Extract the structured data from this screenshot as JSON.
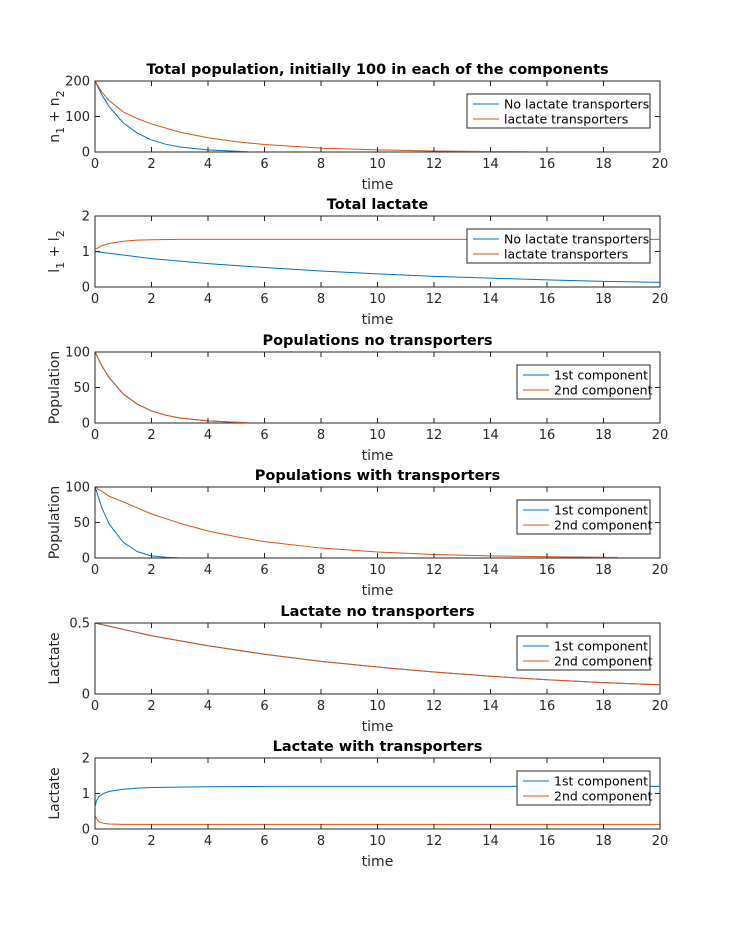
{
  "colors": {
    "blue": "#0072BD",
    "orange": "#D95319",
    "axis": "#262626"
  },
  "chart_data": [
    {
      "type": "line",
      "title": "Total population, initially 100 in each of the components",
      "xlabel": "time",
      "ylabel": {
        "base1": "n",
        "sub1": "1",
        "op": " + ",
        "base2": "n",
        "sub2": "2"
      },
      "xlim": [
        0,
        20
      ],
      "ylim": [
        0,
        200
      ],
      "xticks": [
        "0",
        "2",
        "4",
        "6",
        "8",
        "10",
        "12",
        "14",
        "16",
        "18",
        "20"
      ],
      "yticks": [
        "0",
        "100",
        "200"
      ],
      "legend_position": "top-right",
      "series": [
        {
          "name": "No lactate transporters",
          "color": "blue",
          "x": [
            0,
            0.25,
            0.5,
            1,
            1.5,
            2,
            2.5,
            3,
            4,
            5,
            5.4
          ],
          "y": [
            200,
            160,
            128,
            82,
            53,
            34,
            22,
            14,
            6,
            2,
            1
          ]
        },
        {
          "name": "lactate transporters",
          "color": "orange",
          "x": [
            0,
            0.25,
            0.5,
            1,
            1.5,
            2,
            3,
            4,
            5,
            6,
            8,
            10,
            12,
            14,
            15.4
          ],
          "y": [
            200,
            168,
            145,
            113,
            94,
            79,
            56,
            40,
            29,
            21,
            11,
            6,
            3,
            1.5,
            1
          ]
        }
      ]
    },
    {
      "type": "line",
      "title": "Total lactate",
      "xlabel": "time",
      "ylabel": {
        "base1": "l",
        "sub1": "1",
        "op": " + ",
        "base2": "l",
        "sub2": "2"
      },
      "xlim": [
        0,
        20
      ],
      "ylim": [
        0,
        2
      ],
      "xticks": [
        "0",
        "2",
        "4",
        "6",
        "8",
        "10",
        "12",
        "14",
        "16",
        "18",
        "20"
      ],
      "yticks": [
        "0",
        "1",
        "2"
      ],
      "legend_position": "top-right",
      "series": [
        {
          "name": "No lactate transporters",
          "color": "blue",
          "x": [
            0,
            2,
            4,
            6,
            8,
            10,
            12,
            14,
            16,
            18,
            20
          ],
          "y": [
            1.0,
            0.8,
            0.66,
            0.55,
            0.45,
            0.37,
            0.3,
            0.25,
            0.2,
            0.16,
            0.13
          ]
        },
        {
          "name": "lactate transporters",
          "color": "orange",
          "x": [
            0,
            0.2,
            0.5,
            1,
            1.5,
            2,
            3,
            4,
            6,
            10,
            20
          ],
          "y": [
            1.05,
            1.15,
            1.23,
            1.29,
            1.32,
            1.33,
            1.34,
            1.34,
            1.34,
            1.34,
            1.34
          ]
        }
      ]
    },
    {
      "type": "line",
      "title": "Populations no transporters",
      "xlabel": "time",
      "ylabel": "Population",
      "xlim": [
        0,
        20
      ],
      "ylim": [
        0,
        100
      ],
      "xticks": [
        "0",
        "2",
        "4",
        "6",
        "8",
        "10",
        "12",
        "14",
        "16",
        "18",
        "20"
      ],
      "yticks": [
        "0",
        "50",
        "100"
      ],
      "legend_position": "top-right",
      "series": [
        {
          "name": "1st component",
          "color": "blue",
          "x": [
            0,
            0.25,
            0.5,
            1,
            1.5,
            2,
            2.5,
            3,
            4,
            5,
            5.4
          ],
          "y": [
            100,
            80,
            64,
            41,
            26.5,
            17,
            11,
            7,
            3,
            1,
            0.5
          ]
        },
        {
          "name": "2nd component",
          "color": "orange",
          "x": [
            0,
            0.25,
            0.5,
            1,
            1.5,
            2,
            2.5,
            3,
            4,
            5,
            5.4
          ],
          "y": [
            100,
            80,
            64,
            41,
            26.5,
            17,
            11,
            7,
            3,
            1,
            0.5
          ]
        }
      ]
    },
    {
      "type": "line",
      "title": "Populations with transporters",
      "xlabel": "time",
      "ylabel": "Population",
      "xlim": [
        0,
        20
      ],
      "ylim": [
        0,
        100
      ],
      "xticks": [
        "0",
        "2",
        "4",
        "6",
        "8",
        "10",
        "12",
        "14",
        "16",
        "18",
        "20"
      ],
      "yticks": [
        "0",
        "50",
        "100"
      ],
      "legend_position": "top-right",
      "series": [
        {
          "name": "1st component",
          "color": "blue",
          "x": [
            0,
            0.25,
            0.5,
            1,
            1.5,
            2,
            2.5,
            3
          ],
          "y": [
            100,
            70,
            48,
            22,
            9,
            3,
            1,
            0.3
          ]
        },
        {
          "name": "2nd component",
          "color": "orange",
          "x": [
            0,
            0.5,
            1,
            2,
            3,
            4,
            5,
            6,
            8,
            10,
            12,
            14,
            16,
            18,
            18.5
          ],
          "y": [
            100,
            87,
            79,
            62,
            49,
            38,
            30,
            23,
            14,
            8.5,
            5,
            3,
            1.8,
            1,
            0.8
          ]
        }
      ]
    },
    {
      "type": "line",
      "title": "Lactate no transporters",
      "xlabel": "time",
      "ylabel": "Lactate",
      "xlim": [
        0,
        20
      ],
      "ylim": [
        0,
        0.5
      ],
      "xticks": [
        "0",
        "2",
        "4",
        "6",
        "8",
        "10",
        "12",
        "14",
        "16",
        "18",
        "20"
      ],
      "yticks": [
        "0",
        "0.5"
      ],
      "legend_position": "top-right",
      "series": [
        {
          "name": "1st component",
          "color": "blue",
          "x": [
            0,
            2,
            4,
            6,
            8,
            10,
            12,
            14,
            16,
            18,
            20
          ],
          "y": [
            0.5,
            0.41,
            0.34,
            0.28,
            0.23,
            0.19,
            0.155,
            0.125,
            0.1,
            0.08,
            0.065
          ]
        },
        {
          "name": "2nd component",
          "color": "orange",
          "x": [
            0,
            2,
            4,
            6,
            8,
            10,
            12,
            14,
            16,
            18,
            20
          ],
          "y": [
            0.5,
            0.41,
            0.34,
            0.28,
            0.23,
            0.19,
            0.155,
            0.125,
            0.1,
            0.08,
            0.065
          ]
        }
      ]
    },
    {
      "type": "line",
      "title": "Lactate with transporters",
      "xlabel": "time",
      "ylabel": "Lactate",
      "xlim": [
        0,
        20
      ],
      "ylim": [
        0,
        2
      ],
      "xticks": [
        "0",
        "2",
        "4",
        "6",
        "8",
        "10",
        "12",
        "14",
        "16",
        "18",
        "20"
      ],
      "yticks": [
        "0",
        "1",
        "2"
      ],
      "legend_position": "top-right",
      "series": [
        {
          "name": "1st component",
          "color": "blue",
          "x": [
            0,
            0.05,
            0.15,
            0.3,
            0.5,
            1,
            1.5,
            2,
            3,
            4,
            6,
            10,
            20
          ],
          "y": [
            0.6,
            0.8,
            0.92,
            1.0,
            1.06,
            1.12,
            1.15,
            1.17,
            1.18,
            1.19,
            1.2,
            1.2,
            1.2
          ]
        },
        {
          "name": "2nd component",
          "color": "orange",
          "x": [
            0,
            0.05,
            0.15,
            0.3,
            0.5,
            1,
            1.5,
            2,
            4,
            10,
            20
          ],
          "y": [
            0.4,
            0.3,
            0.2,
            0.16,
            0.14,
            0.13,
            0.13,
            0.13,
            0.13,
            0.13,
            0.13
          ]
        }
      ]
    }
  ]
}
